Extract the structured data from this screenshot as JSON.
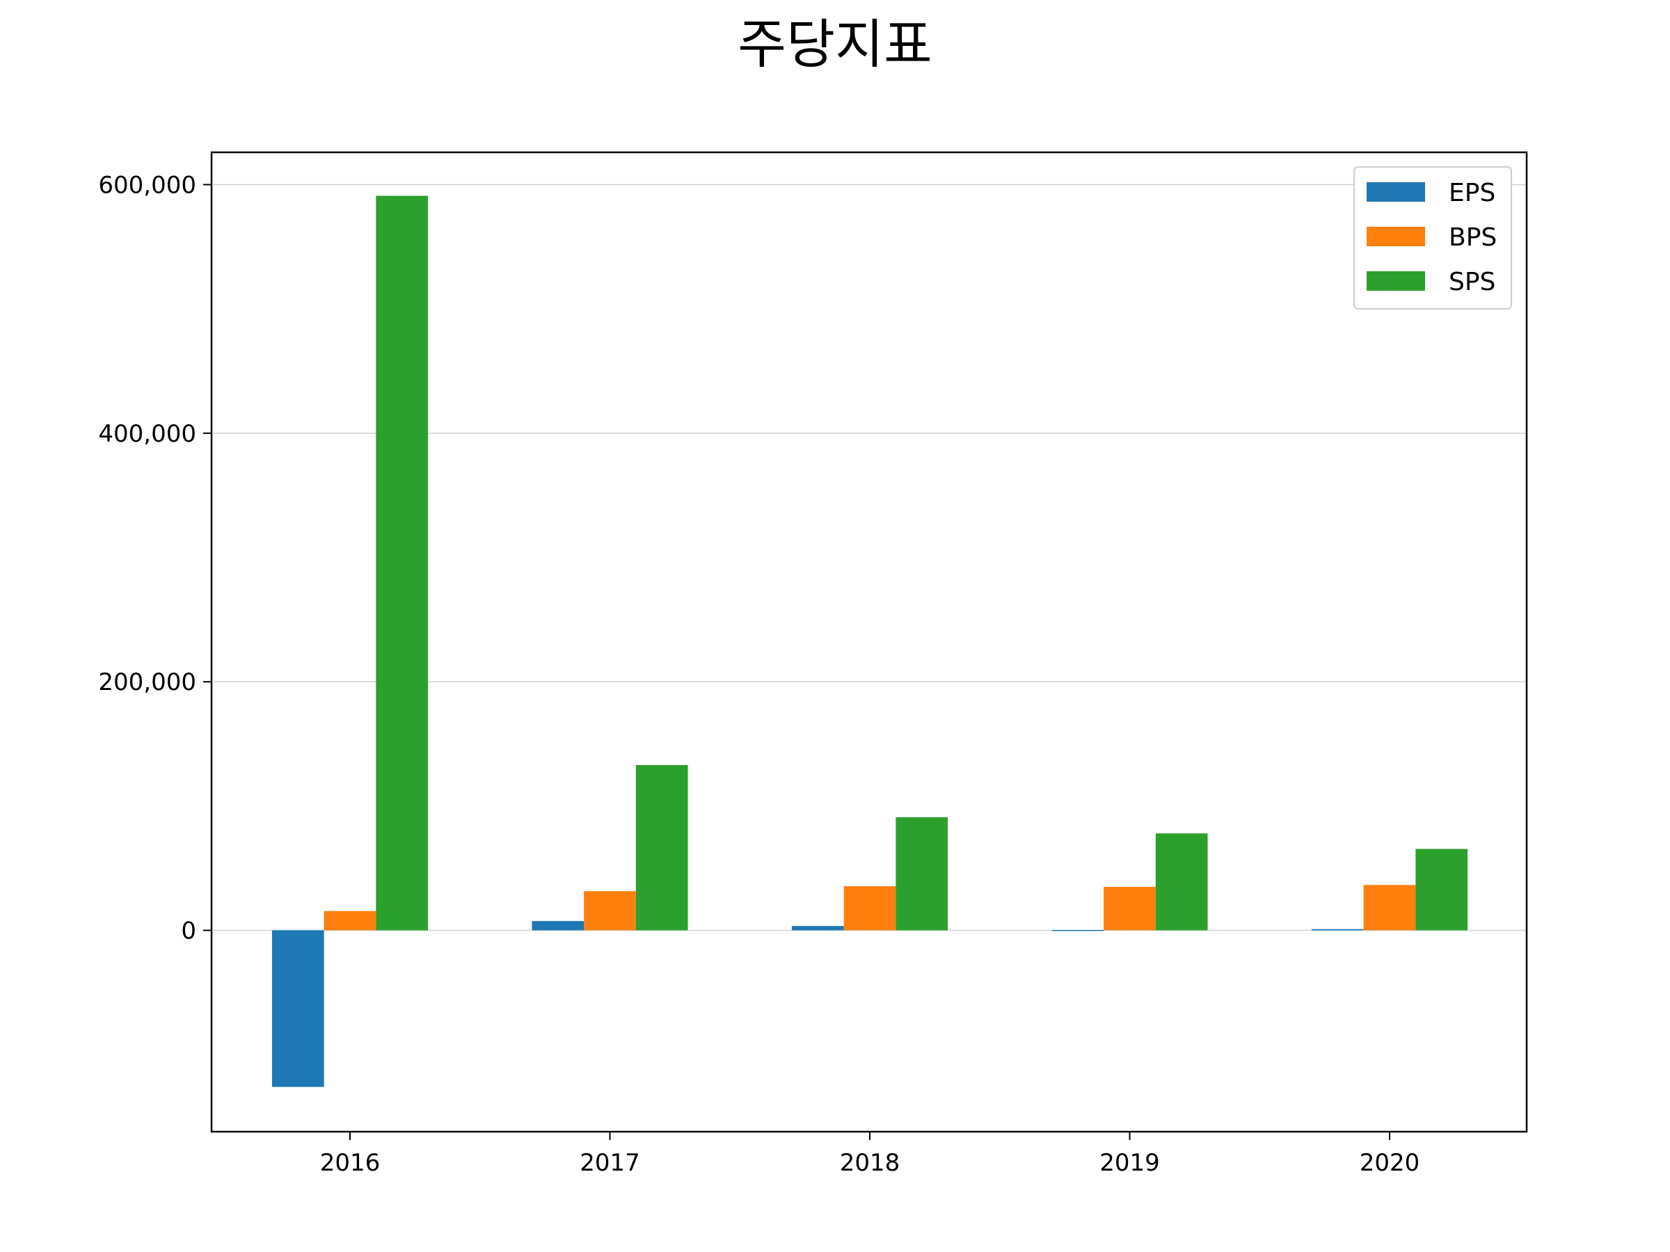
{
  "chart_data": {
    "type": "bar",
    "title": "주당지표",
    "xlabel": "",
    "ylabel": "",
    "categories": [
      "2016",
      "2017",
      "2018",
      "2019",
      "2020"
    ],
    "series": [
      {
        "name": "EPS",
        "color": "#1f77b4",
        "values": [
          -126000,
          7500,
          3500,
          300,
          1000
        ]
      },
      {
        "name": "BPS",
        "color": "#ff7f0e",
        "values": [
          15500,
          31500,
          35500,
          35000,
          36500
        ]
      },
      {
        "name": "SPS",
        "color": "#2ca02c",
        "values": [
          591000,
          133000,
          91000,
          78000,
          65500
        ]
      }
    ],
    "ylim": [
      -162000,
      626000
    ],
    "yticks": [
      0,
      200000,
      400000,
      600000
    ],
    "ytick_labels": [
      "0",
      "200,000",
      "400,000",
      "600,000"
    ],
    "grid": "y",
    "legend_position": "top-right"
  }
}
